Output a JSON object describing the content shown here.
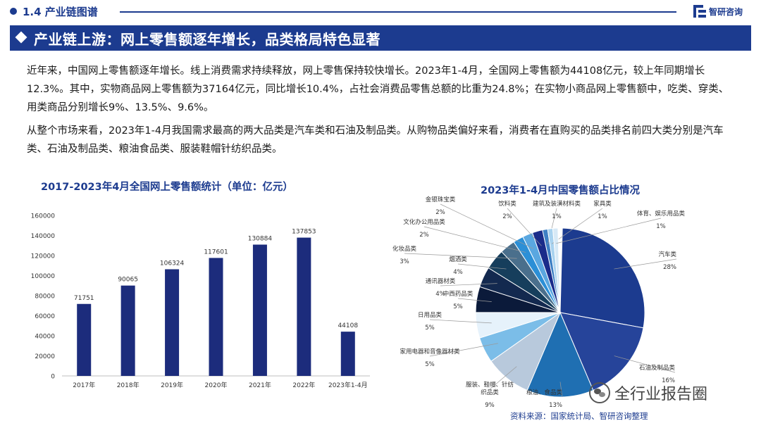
{
  "header": {
    "section": "1.4 产业链图谱",
    "logo_text": "智研咨询"
  },
  "banner": {
    "title": "产业链上游：网上零售额逐年增长，品类格局特色显著"
  },
  "body": {
    "para1": "近年来，中国网上零售额逐年增长。线上消费需求持续释放，网上零售保持较快增长。2023年1-4月，全国网上零售额为44108亿元，较上年同期增长12.3%。其中，实物商品网上零售额为37164亿元，同比增长10.4%，占社会消费品零售总额的比重为24.8%；在实物小商品网上零售额中，吃类、穿类、用类商品分别增长9%、13.5%、9.6%。",
    "para2": "从整个市场来看，2023年1-4月我国需求最高的两大品类是汽车类和石油及制品类。从购物品类偏好来看，消费者在直购买的品类排名前四大类分别是汽车类、石油及制品类、粮油食品类、服装鞋帽针纺织品类。"
  },
  "chart_data": [
    {
      "type": "bar",
      "title": "2017-2023年4月全国网上零售额统计（单位：亿元）",
      "categories": [
        "2017年",
        "2018年",
        "2019年",
        "2020年",
        "2021年",
        "2022年",
        "2023年1-4月"
      ],
      "values": [
        71751,
        90065,
        106324,
        117601,
        130884,
        137853,
        44108
      ],
      "ylim": [
        0,
        160000
      ],
      "yticks": [
        0,
        20000,
        40000,
        60000,
        80000,
        100000,
        120000,
        140000,
        160000
      ],
      "grid": false,
      "bar_color": "#1c2c7c"
    },
    {
      "type": "pie",
      "title": "2023年1-4月中国零售额占比情况",
      "slices": [
        {
          "name": "汽车类",
          "pct": "28%",
          "value": 28,
          "color": "#1c3b8f"
        },
        {
          "name": "石油及制品类",
          "pct": "16%",
          "value": 16,
          "color": "#26449a"
        },
        {
          "name": "粮油、食品类",
          "pct": "13%",
          "value": 13,
          "color": "#1f6fb2"
        },
        {
          "name": "服装、鞋帽、针纺织品类",
          "pct": "9%",
          "value": 9,
          "color": "#b8c9dc"
        },
        {
          "name": "家用电器和音像器材类",
          "pct": "5%",
          "value": 5,
          "color": "#7bbde8"
        },
        {
          "name": "日用品类",
          "pct": "5%",
          "value": 5,
          "color": "#e6f2fb"
        },
        {
          "name": "中西药品类",
          "pct": "5%",
          "value": 5,
          "color": "#0b1a3a"
        },
        {
          "name": "通讯器材类",
          "pct": "4%",
          "value": 4,
          "color": "#13294f"
        },
        {
          "name": "烟酒类",
          "pct": "4%",
          "value": 4,
          "color": "#163e5c"
        },
        {
          "name": "化妆品类",
          "pct": "3%",
          "value": 3,
          "color": "#4a6f8c"
        },
        {
          "name": "文化办公用品类",
          "pct": "2%",
          "value": 2,
          "color": "#2c8fd6"
        },
        {
          "name": "金银珠宝类",
          "pct": "2%",
          "value": 2,
          "color": "#5aa7e0"
        },
        {
          "name": "饮料类",
          "pct": "2%",
          "value": 2,
          "color": "#1a2c8a"
        },
        {
          "name": "建筑及装潢材料类",
          "pct": "1%",
          "value": 1,
          "color": "#3d7fc4"
        },
        {
          "name": "家具类",
          "pct": "1%",
          "value": 1,
          "color": "#a8d2ef"
        },
        {
          "name": "体育、娱乐用品类",
          "pct": "1%",
          "value": 1,
          "color": "#d7e9f6"
        }
      ]
    }
  ],
  "footer": {
    "source": "资料来源：国家统计局、智研咨询整理",
    "wechat_name": "全行业报告圈"
  }
}
